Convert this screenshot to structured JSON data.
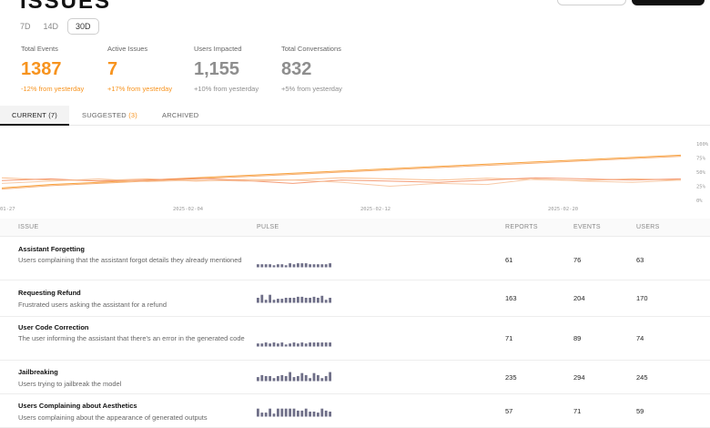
{
  "header": {
    "title": "ISSUES"
  },
  "range": {
    "options": [
      "7D",
      "14D",
      "30D"
    ],
    "selected": "30D"
  },
  "stats": [
    {
      "label": "Total Events",
      "value": "1387",
      "delta": "-12% from yesterday",
      "tone": "orange"
    },
    {
      "label": "Active Issues",
      "value": "7",
      "delta": "+17% from yesterday",
      "tone": "orange"
    },
    {
      "label": "Users Impacted",
      "value": "1,155",
      "delta": "+10% from yesterday",
      "tone": "grey"
    },
    {
      "label": "Total Conversations",
      "value": "832",
      "delta": "+5% from yesterday",
      "tone": "grey"
    }
  ],
  "tabs": [
    {
      "label": "CURRENT (7)",
      "badge": ""
    },
    {
      "label": "SUGGESTED ",
      "badge": "(3)"
    },
    {
      "label": "ARCHIVED",
      "badge": ""
    }
  ],
  "chart_data": {
    "type": "line",
    "x_ticks": [
      "01-27",
      "2025-02-04",
      "2025-02-12",
      "2025-02-20"
    ],
    "y_ticks": [
      "100%",
      "75%",
      "50%",
      "25%",
      "0%"
    ],
    "ylim": [
      0,
      100
    ],
    "colors": [
      "#f7931e",
      "#f5a15a",
      "#f8b27a",
      "#f28b5e",
      "#f6c199"
    ],
    "series": [
      {
        "values": [
          22,
          28,
          32,
          36,
          40,
          44,
          48,
          52,
          56,
          60,
          64,
          68,
          72,
          76,
          80
        ]
      },
      {
        "values": [
          20,
          26,
          30,
          34,
          38,
          42,
          46,
          50,
          54,
          58,
          62,
          66,
          70,
          74,
          78
        ]
      },
      {
        "values": [
          40,
          36,
          35,
          38,
          34,
          37,
          36,
          40,
          38,
          36,
          39,
          37,
          35,
          38,
          36
        ]
      },
      {
        "values": [
          35,
          38,
          34,
          36,
          39,
          35,
          30,
          36,
          34,
          32,
          36,
          40,
          38,
          36,
          38
        ]
      },
      {
        "values": [
          30,
          34,
          38,
          33,
          36,
          34,
          36,
          32,
          25,
          30,
          28,
          38,
          34,
          32,
          36
        ]
      }
    ]
  },
  "table": {
    "columns": [
      "ISSUE",
      "PULSE",
      "REPORTS",
      "EVENTS",
      "USERS"
    ],
    "rows": [
      {
        "title": "Assistant Forgetting",
        "desc": "Users complaining that the assistant forgot details they already mentioned",
        "reports": "61",
        "events": "76",
        "users": "63",
        "pulse": [
          3,
          3,
          3,
          3,
          2,
          3,
          3,
          2,
          4,
          3,
          4,
          4,
          4,
          3,
          3,
          3,
          3,
          3,
          4
        ]
      },
      {
        "title": "Requesting Refund",
        "desc": "Frustrated users asking the assistant for a refund",
        "reports": "163",
        "events": "204",
        "users": "170",
        "pulse": [
          5,
          8,
          3,
          8,
          3,
          4,
          4,
          5,
          5,
          5,
          6,
          6,
          5,
          5,
          6,
          5,
          7,
          3,
          5
        ]
      },
      {
        "title": "User Code Correction",
        "desc": "The user informing the assistant that there's an error in the generated code",
        "reports": "71",
        "events": "89",
        "users": "74",
        "pulse": [
          3,
          3,
          4,
          3,
          4,
          3,
          4,
          2,
          3,
          4,
          3,
          4,
          3,
          4,
          4,
          4,
          4,
          4,
          4
        ]
      },
      {
        "title": "Jailbreaking",
        "desc": "Users trying to jailbreak the model",
        "reports": "235",
        "events": "294",
        "users": "245",
        "pulse": [
          4,
          6,
          5,
          5,
          3,
          5,
          6,
          5,
          9,
          4,
          5,
          8,
          6,
          3,
          8,
          6,
          3,
          5,
          9
        ]
      },
      {
        "title": "Users Complaining about Aesthetics",
        "desc": "Users complaining about the appearance of generated outputs",
        "reports": "57",
        "events": "71",
        "users": "59",
        "pulse": [
          8,
          4,
          4,
          8,
          3,
          8,
          8,
          8,
          8,
          8,
          6,
          6,
          8,
          5,
          5,
          4,
          8,
          6,
          5
        ]
      }
    ]
  }
}
